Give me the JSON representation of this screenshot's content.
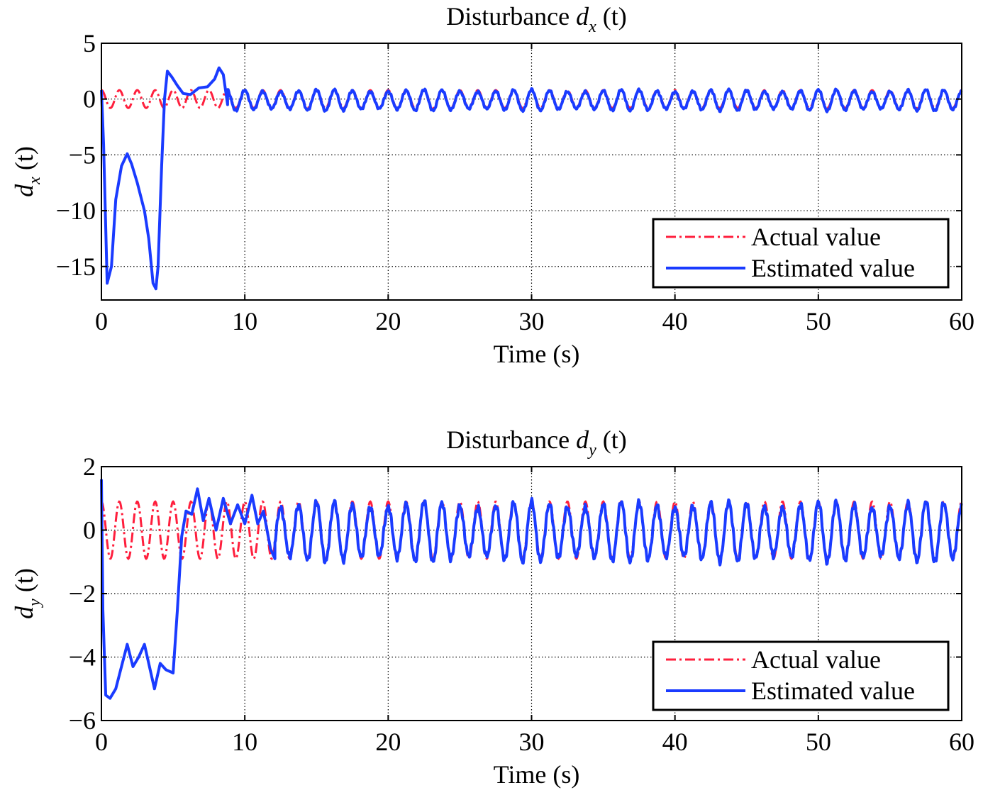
{
  "chart_data": [
    {
      "type": "line",
      "title": "Disturbance dx (t)",
      "title_parts": {
        "prefix": "Disturbance ",
        "var": "d",
        "sub": "x",
        "suffix": " (t)"
      },
      "xlabel": "Time (s)",
      "ylabel": "dx (t)",
      "ylabel_parts": {
        "var": "d",
        "sub": "x",
        "suffix": " (t)"
      },
      "xlim": [
        0,
        60
      ],
      "ylim": [
        -18,
        5
      ],
      "xticks": [
        0,
        10,
        20,
        30,
        40,
        50,
        60
      ],
      "yticks": [
        5,
        0,
        -5,
        -10,
        -15
      ],
      "ytick_labels": [
        "5",
        "0",
        "−5",
        "−10",
        "−15"
      ],
      "grid": true,
      "legend": {
        "position": "lower-right",
        "entries": [
          "Actual value",
          "Estimated value"
        ]
      },
      "series": [
        {
          "name": "Actual value",
          "color": "#ff1f3d",
          "style": "dash-dot",
          "model": {
            "amplitude": 0.8,
            "period_s": 1.25,
            "phase": 1.5708,
            "offset": 0
          }
        },
        {
          "name": "Estimated value",
          "color": "#1a3bff",
          "style": "solid",
          "x": [
            0,
            0.15,
            0.4,
            0.7,
            1.0,
            1.4,
            1.8,
            2.1,
            2.5,
            3.0,
            3.3,
            3.6,
            3.8,
            3.95,
            4.2,
            4.4,
            4.6,
            4.9,
            5.3,
            5.7,
            6.2,
            6.8,
            7.4,
            7.9,
            8.2,
            8.5,
            8.8
          ],
          "y": [
            0.8,
            -4,
            -16.5,
            -15,
            -9,
            -6,
            -4.9,
            -5.8,
            -7.5,
            -10,
            -12.5,
            -16.5,
            -17,
            -15,
            -6,
            0,
            2.5,
            2,
            1.2,
            0.5,
            0.4,
            1.0,
            1.1,
            1.8,
            2.8,
            2.2,
            -0.5
          ],
          "oscillation_after_s": 8.8,
          "model": {
            "amplitude": 0.85,
            "period_s": 1.25,
            "phase": 1.5708,
            "offset": -0.1
          }
        }
      ]
    },
    {
      "type": "line",
      "title": "Disturbance dy (t)",
      "title_parts": {
        "prefix": "Disturbance ",
        "var": "d",
        "sub": "y",
        "suffix": " (t)"
      },
      "xlabel": "Time (s)",
      "ylabel": "dy (t)",
      "ylabel_parts": {
        "var": "d",
        "sub": "y",
        "suffix": " (t)"
      },
      "xlim": [
        0,
        60
      ],
      "ylim": [
        -6,
        2
      ],
      "xticks": [
        0,
        10,
        20,
        30,
        40,
        50,
        60
      ],
      "yticks": [
        2,
        0,
        -2,
        -4,
        -6
      ],
      "ytick_labels": [
        "2",
        "0",
        "−2",
        "−4",
        "−6"
      ],
      "grid": true,
      "legend": {
        "position": "lower-right",
        "entries": [
          "Actual value",
          "Estimated value"
        ]
      },
      "series": [
        {
          "name": "Actual value",
          "color": "#ff1f3d",
          "style": "dash-dot",
          "model": {
            "amplitude": 0.9,
            "period_s": 1.25,
            "phase": 1.5708,
            "offset": 0
          }
        },
        {
          "name": "Estimated value",
          "color": "#1a3bff",
          "style": "solid",
          "x": [
            0,
            0.1,
            0.3,
            0.6,
            1.0,
            1.4,
            1.8,
            2.2,
            2.6,
            3.0,
            3.4,
            3.7,
            4.1,
            4.5,
            5.0,
            5.3,
            5.6,
            5.9,
            6.3,
            6.7,
            7.1,
            7.5,
            8.0,
            8.5,
            9.0,
            9.5,
            10.0,
            10.5,
            10.9,
            11.3,
            11.8,
            12.1
          ],
          "y": [
            1.6,
            -2.5,
            -5.2,
            -5.3,
            -5.0,
            -4.3,
            -3.6,
            -4.3,
            -4.0,
            -3.6,
            -4.4,
            -5.0,
            -4.2,
            -4.4,
            -4.5,
            -2.5,
            -0.2,
            0.6,
            0.5,
            1.3,
            0.3,
            1.0,
            0.0,
            1.0,
            0.2,
            0.8,
            0.2,
            1.1,
            0.2,
            0.6,
            -0.6,
            -0.9
          ],
          "oscillation_after_s": 12.1,
          "model": {
            "amplitude": 0.85,
            "period_s": 1.25,
            "phase": 1.5708,
            "offset": -0.05
          }
        }
      ]
    }
  ]
}
